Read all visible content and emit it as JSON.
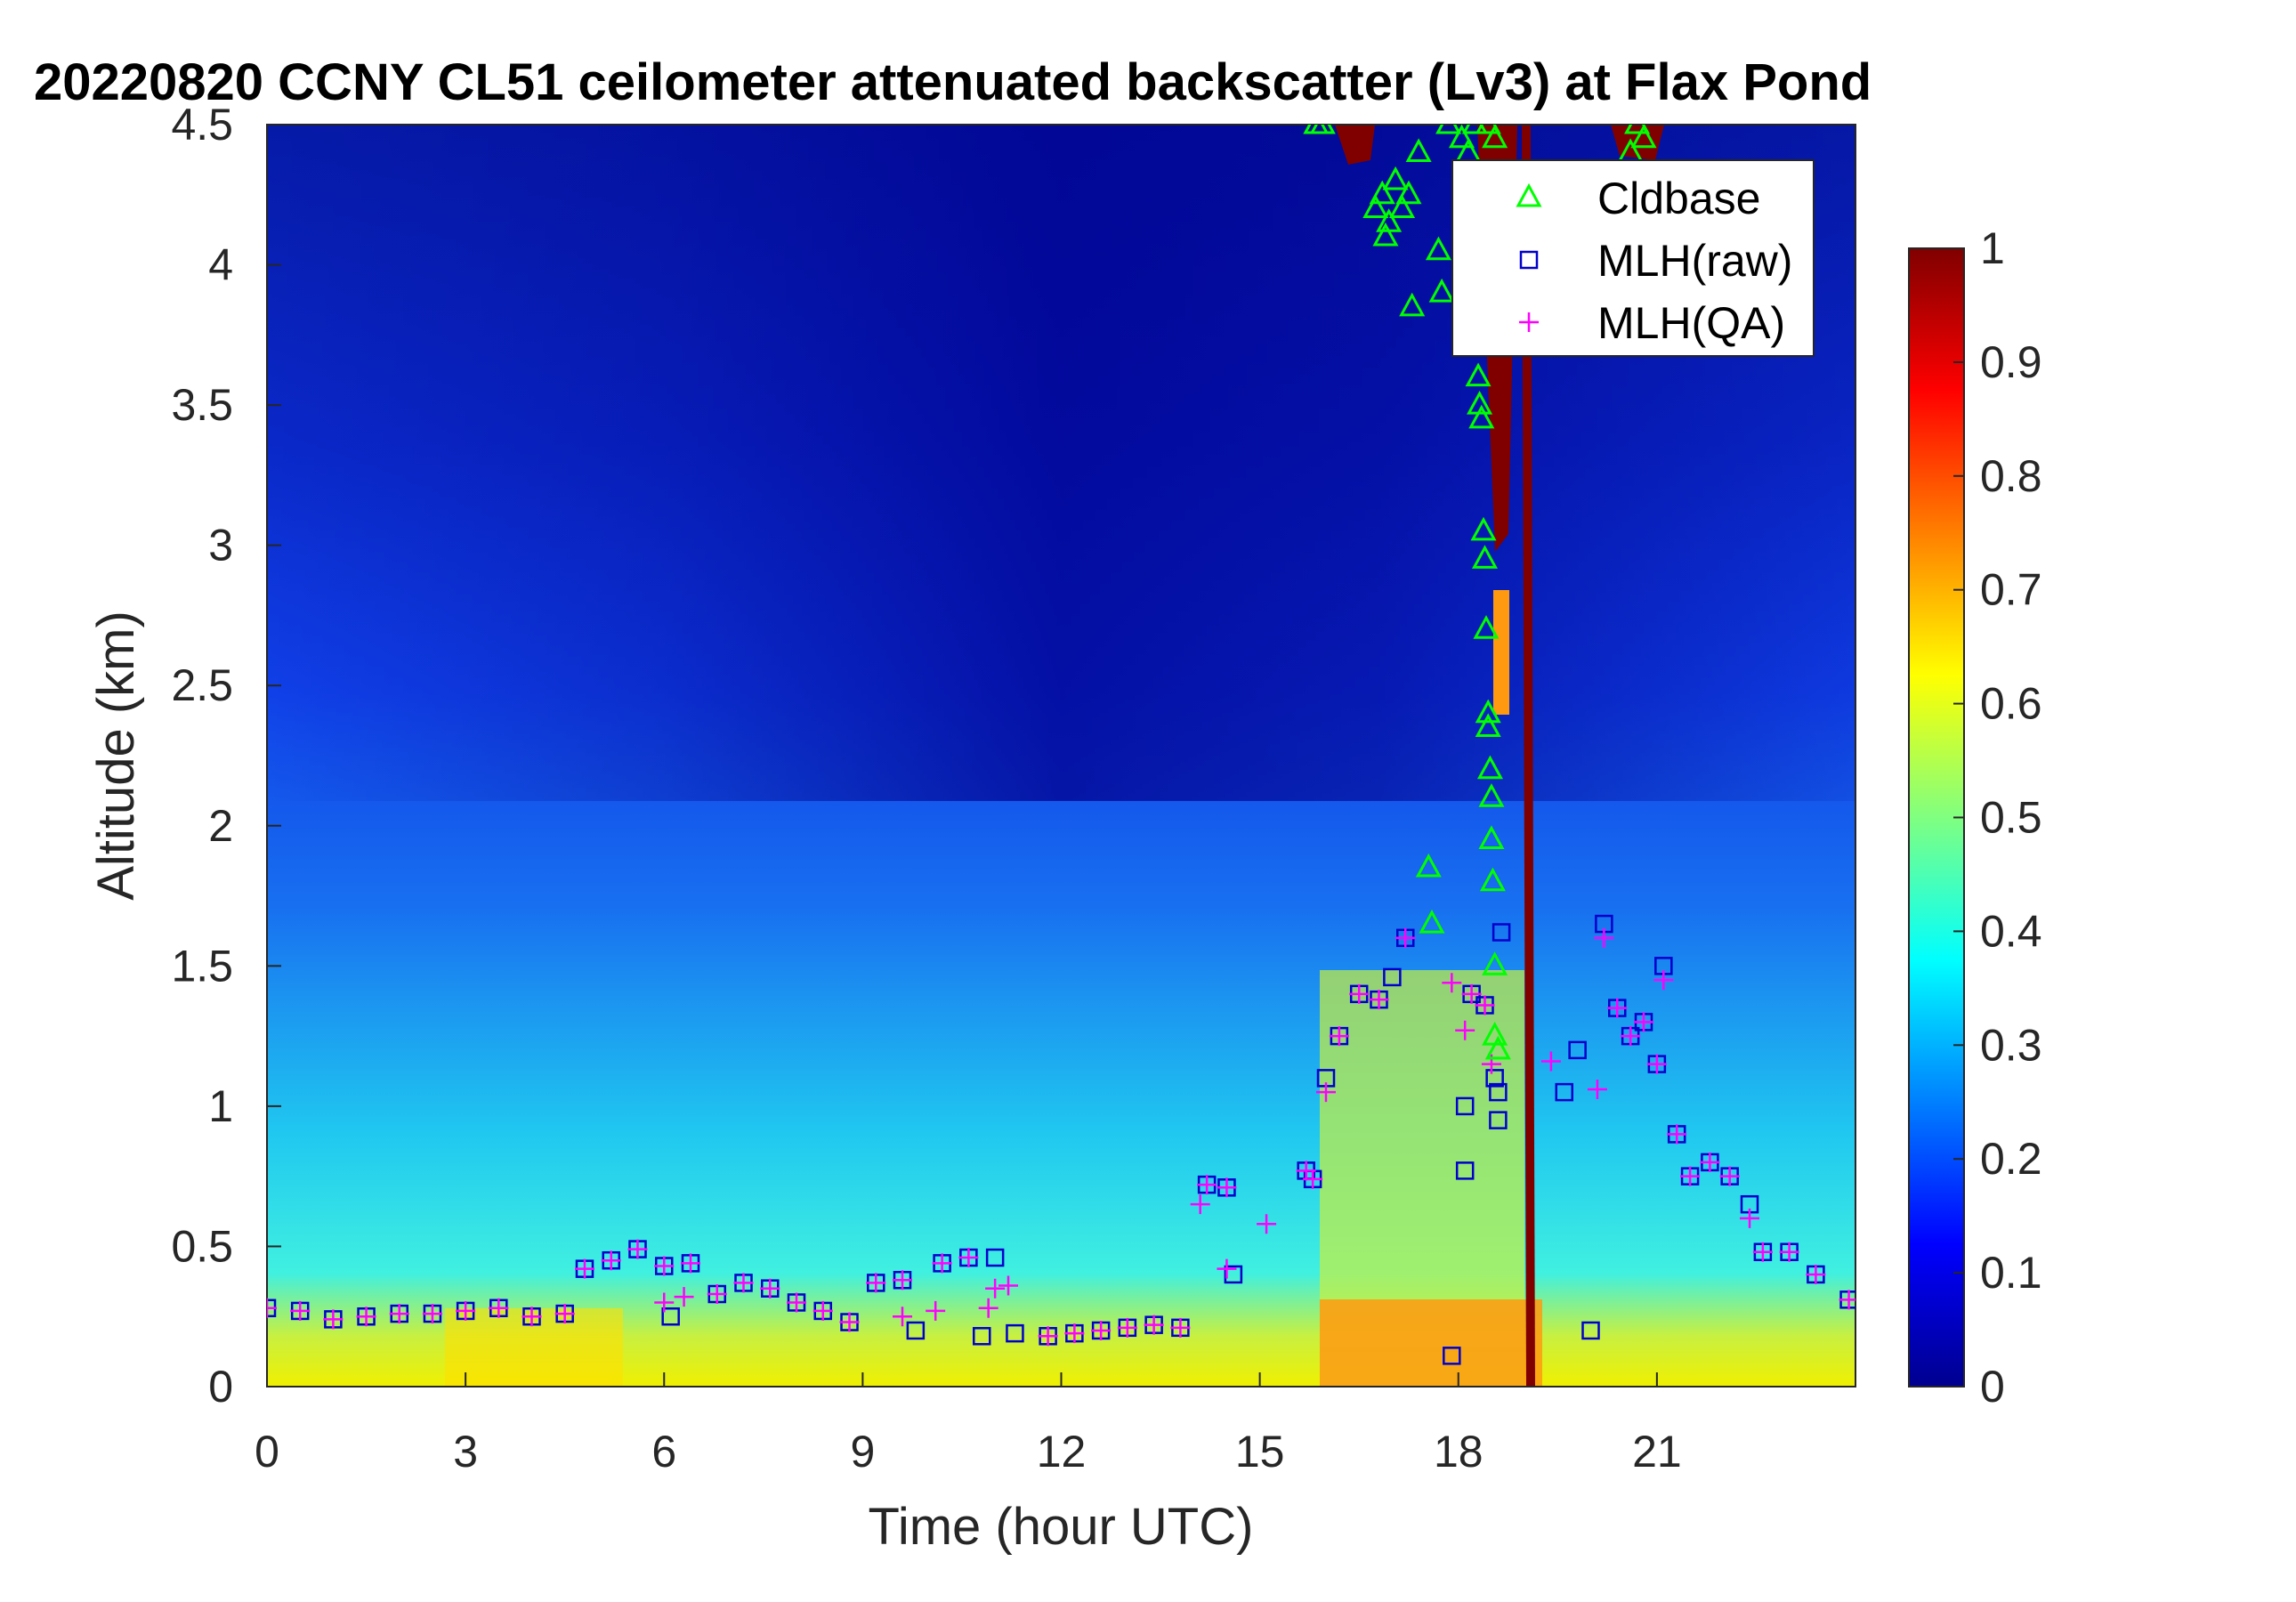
{
  "chart_data": {
    "type": "heatmap",
    "title": "20220820 CCNY CL51 ceilometer attenuated backscatter (Lv3) at Flax Pond",
    "xlabel": "Time (hour UTC)",
    "ylabel": "Altitude (km)",
    "xlim": [
      0,
      24
    ],
    "ylim": [
      0,
      4.5
    ],
    "xticks": [
      "0",
      "3",
      "6",
      "9",
      "12",
      "15",
      "18",
      "21"
    ],
    "yticks": [
      "0",
      "0.5",
      "1",
      "1.5",
      "2",
      "2.5",
      "3",
      "3.5",
      "4",
      "4.5"
    ],
    "colorbar": {
      "range": [
        0,
        1
      ],
      "ticks": [
        "0",
        "0.1",
        "0.2",
        "0.3",
        "0.4",
        "0.5",
        "0.6",
        "0.7",
        "0.8",
        "0.9",
        "1"
      ],
      "colormap": "jet"
    },
    "legend": {
      "position": "top-right",
      "entries": [
        {
          "label": "Cldbase",
          "marker": "triangle",
          "color": "#00ff00"
        },
        {
          "label": "MLH(raw)",
          "marker": "square",
          "color": "#0000cc"
        },
        {
          "label": "MLH(QA)",
          "marker": "plus",
          "color": "#ff00ff"
        }
      ]
    },
    "series": [
      {
        "name": "Cldbase",
        "points": [
          [
            15.85,
            4.5
          ],
          [
            15.95,
            4.5
          ],
          [
            16.75,
            4.2
          ],
          [
            16.85,
            4.25
          ],
          [
            16.95,
            4.15
          ],
          [
            17.05,
            4.3
          ],
          [
            17.15,
            4.2
          ],
          [
            17.25,
            4.25
          ],
          [
            16.9,
            4.1
          ],
          [
            17.3,
            3.85
          ],
          [
            17.4,
            4.4
          ],
          [
            17.55,
            1.85
          ],
          [
            17.6,
            1.65
          ],
          [
            17.7,
            4.05
          ],
          [
            17.75,
            3.9
          ],
          [
            17.85,
            4.5
          ],
          [
            18.05,
            4.45
          ],
          [
            18.15,
            4.4
          ],
          [
            18.25,
            4.5
          ],
          [
            18.3,
            3.6
          ],
          [
            18.32,
            3.5
          ],
          [
            18.35,
            3.45
          ],
          [
            18.38,
            3.05
          ],
          [
            18.4,
            2.95
          ],
          [
            18.42,
            2.7
          ],
          [
            18.45,
            2.4
          ],
          [
            18.45,
            2.35
          ],
          [
            18.48,
            2.2
          ],
          [
            18.5,
            2.1
          ],
          [
            18.5,
            1.95
          ],
          [
            18.52,
            1.8
          ],
          [
            18.55,
            1.5
          ],
          [
            18.55,
            1.25
          ],
          [
            18.6,
            1.2
          ],
          [
            18.45,
            4.5
          ],
          [
            18.55,
            4.45
          ],
          [
            20.6,
            4.4
          ],
          [
            20.7,
            4.5
          ],
          [
            20.8,
            4.45
          ]
        ]
      },
      {
        "name": "MLH(raw)",
        "points": [
          [
            0,
            0.28
          ],
          [
            0.5,
            0.27
          ],
          [
            1,
            0.24
          ],
          [
            1.5,
            0.25
          ],
          [
            2,
            0.26
          ],
          [
            2.5,
            0.26
          ],
          [
            3,
            0.27
          ],
          [
            3.5,
            0.28
          ],
          [
            4,
            0.25
          ],
          [
            4.5,
            0.26
          ],
          [
            4.8,
            0.42
          ],
          [
            5.2,
            0.45
          ],
          [
            5.6,
            0.49
          ],
          [
            6,
            0.43
          ],
          [
            6.1,
            0.25
          ],
          [
            6.4,
            0.44
          ],
          [
            6.8,
            0.33
          ],
          [
            7.2,
            0.37
          ],
          [
            7.6,
            0.35
          ],
          [
            8,
            0.3
          ],
          [
            8.4,
            0.27
          ],
          [
            8.8,
            0.23
          ],
          [
            9.2,
            0.37
          ],
          [
            9.6,
            0.38
          ],
          [
            9.8,
            0.2
          ],
          [
            10.2,
            0.44
          ],
          [
            10.6,
            0.46
          ],
          [
            10.8,
            0.18
          ],
          [
            11,
            0.46
          ],
          [
            11.3,
            0.19
          ],
          [
            11.8,
            0.18
          ],
          [
            12.2,
            0.19
          ],
          [
            12.6,
            0.2
          ],
          [
            13,
            0.21
          ],
          [
            13.4,
            0.22
          ],
          [
            13.8,
            0.21
          ],
          [
            14.2,
            0.72
          ],
          [
            14.5,
            0.71
          ],
          [
            14.6,
            0.4
          ],
          [
            15.7,
            0.77
          ],
          [
            15.8,
            0.74
          ],
          [
            16,
            1.1
          ],
          [
            16.2,
            1.25
          ],
          [
            16.5,
            1.4
          ],
          [
            16.8,
            1.38
          ],
          [
            17,
            1.46
          ],
          [
            17.2,
            1.6
          ],
          [
            17.9,
            0.11
          ],
          [
            18.1,
            0.77
          ],
          [
            18.1,
            1
          ],
          [
            18.2,
            1.4
          ],
          [
            18.4,
            1.36
          ],
          [
            18.55,
            1.1
          ],
          [
            18.6,
            1.05
          ],
          [
            18.65,
            1.62
          ],
          [
            18.6,
            0.95
          ],
          [
            19.6,
            1.05
          ],
          [
            19.8,
            1.2
          ],
          [
            20,
            0.2
          ],
          [
            20.2,
            1.65
          ],
          [
            20.4,
            1.35
          ],
          [
            20.6,
            1.25
          ],
          [
            20.8,
            1.3
          ],
          [
            21,
            1.15
          ],
          [
            21.1,
            1.5
          ],
          [
            21.3,
            0.9
          ],
          [
            21.5,
            0.75
          ],
          [
            21.8,
            0.8
          ],
          [
            22.1,
            0.75
          ],
          [
            22.4,
            0.65
          ],
          [
            22.6,
            0.48
          ],
          [
            23,
            0.48
          ],
          [
            23.4,
            0.4
          ],
          [
            23.9,
            0.31
          ]
        ]
      },
      {
        "name": "MLH(QA)",
        "points": [
          [
            0,
            0.28
          ],
          [
            0.5,
            0.27
          ],
          [
            1,
            0.24
          ],
          [
            1.5,
            0.25
          ],
          [
            2,
            0.26
          ],
          [
            2.5,
            0.26
          ],
          [
            3,
            0.27
          ],
          [
            3.5,
            0.28
          ],
          [
            4,
            0.25
          ],
          [
            4.5,
            0.26
          ],
          [
            4.8,
            0.42
          ],
          [
            5.2,
            0.45
          ],
          [
            5.6,
            0.49
          ],
          [
            6,
            0.43
          ],
          [
            6,
            0.3
          ],
          [
            6.3,
            0.32
          ],
          [
            6.4,
            0.44
          ],
          [
            6.8,
            0.33
          ],
          [
            7.2,
            0.37
          ],
          [
            7.6,
            0.35
          ],
          [
            8,
            0.3
          ],
          [
            8.4,
            0.27
          ],
          [
            8.8,
            0.23
          ],
          [
            9.2,
            0.37
          ],
          [
            9.6,
            0.38
          ],
          [
            9.6,
            0.25
          ],
          [
            10.1,
            0.27
          ],
          [
            10.2,
            0.44
          ],
          [
            10.6,
            0.46
          ],
          [
            10.9,
            0.28
          ],
          [
            11,
            0.35
          ],
          [
            11.2,
            0.36
          ],
          [
            11.8,
            0.18
          ],
          [
            12.2,
            0.19
          ],
          [
            12.6,
            0.2
          ],
          [
            13,
            0.21
          ],
          [
            13.4,
            0.22
          ],
          [
            13.8,
            0.21
          ],
          [
            14.1,
            0.65
          ],
          [
            14.2,
            0.72
          ],
          [
            14.5,
            0.71
          ],
          [
            14.5,
            0.42
          ],
          [
            15.1,
            0.58
          ],
          [
            15.7,
            0.77
          ],
          [
            15.8,
            0.74
          ],
          [
            16,
            1.05
          ],
          [
            16.2,
            1.25
          ],
          [
            16.5,
            1.4
          ],
          [
            16.8,
            1.38
          ],
          [
            17.2,
            1.6
          ],
          [
            17.9,
            1.44
          ],
          [
            18.1,
            1.27
          ],
          [
            18.2,
            1.4
          ],
          [
            18.4,
            1.36
          ],
          [
            18.5,
            1.15
          ],
          [
            19.4,
            1.16
          ],
          [
            20.1,
            1.06
          ],
          [
            20.2,
            1.6
          ],
          [
            20.4,
            1.35
          ],
          [
            20.6,
            1.25
          ],
          [
            20.8,
            1.3
          ],
          [
            21,
            1.15
          ],
          [
            21.1,
            1.45
          ],
          [
            21.3,
            0.9
          ],
          [
            21.5,
            0.75
          ],
          [
            21.8,
            0.8
          ],
          [
            22.1,
            0.75
          ],
          [
            22.4,
            0.6
          ],
          [
            22.6,
            0.48
          ],
          [
            23,
            0.48
          ],
          [
            23.4,
            0.4
          ],
          [
            23.9,
            0.31
          ]
        ]
      }
    ],
    "grid": false
  }
}
